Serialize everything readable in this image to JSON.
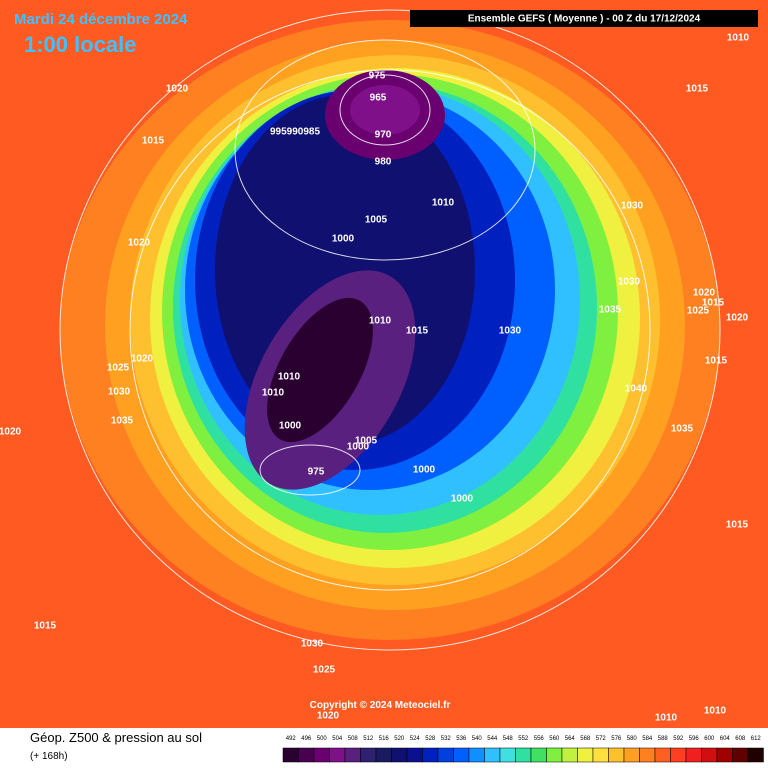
{
  "header": {
    "date": "Mardi 24 décembre 2024",
    "time": "1:00 locale",
    "run": "Ensemble GEFS  ( Moyenne )  -  00 Z du 17/12/2024"
  },
  "map": {
    "isobar_labels": [
      "1010",
      "1020",
      "1015",
      "975",
      "965",
      "995990985",
      "970",
      "980",
      "1015",
      "1005",
      "1010",
      "1030",
      "1000",
      "1020",
      "1030",
      "1020",
      "1015",
      "1025",
      "1020",
      "1035",
      "1010",
      "1015",
      "1030",
      "1020",
      "1025",
      "1015",
      "1010",
      "1010",
      "1030",
      "1040",
      "1035",
      "1035",
      "1000",
      "1020",
      "1005",
      "1000",
      "1000",
      "1000",
      "975",
      "1015",
      "1015",
      "1030",
      "1025",
      "1020",
      "1010",
      "1010"
    ],
    "copyright": "Copyright © 2024 Meteociel.fr"
  },
  "footer": {
    "title": "Géop. Z500 & pression au sol",
    "lead": "(+ 168h)"
  },
  "legend": {
    "values": [
      492,
      496,
      500,
      504,
      508,
      512,
      516,
      520,
      524,
      528,
      532,
      536,
      540,
      544,
      548,
      552,
      556,
      560,
      564,
      568,
      572,
      576,
      580,
      584,
      588,
      592,
      596,
      600,
      604,
      608,
      612
    ],
    "colors": [
      "#2a0030",
      "#4a0050",
      "#6a0070",
      "#80108a",
      "#5a2080",
      "#302070",
      "#1a1a60",
      "#101070",
      "#0a1090",
      "#0020c0",
      "#0040e0",
      "#0060ff",
      "#1090ff",
      "#30c0ff",
      "#40e0e0",
      "#30e0a0",
      "#40e060",
      "#80f040",
      "#c0f040",
      "#f0f040",
      "#ffe040",
      "#ffc030",
      "#ffa020",
      "#ff8020",
      "#ff6020",
      "#ff4020",
      "#f02020",
      "#d01010",
      "#a00000",
      "#600000",
      "#200000"
    ]
  }
}
